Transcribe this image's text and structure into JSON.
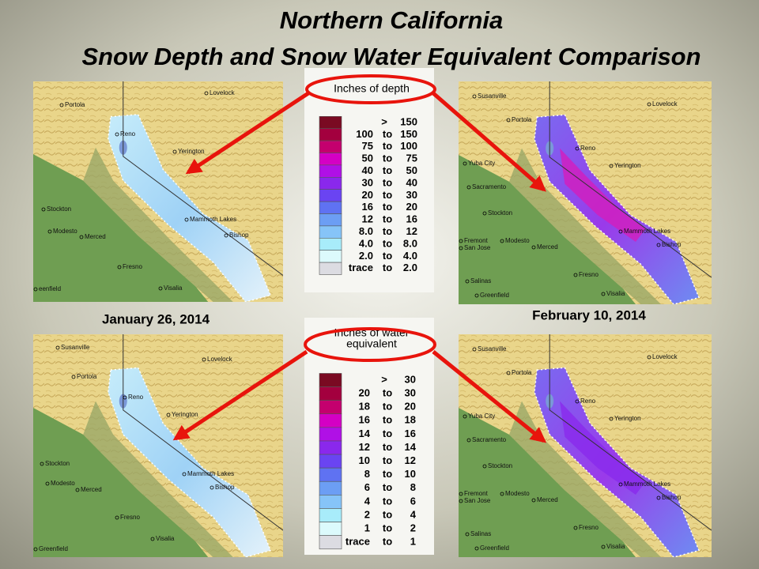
{
  "header": {
    "title": "Northern California",
    "subtitle": "Snow Depth and Snow Water Equivalent Comparison"
  },
  "dates": [
    "January 26, 2014",
    "February 10, 2014"
  ],
  "legends": [
    {
      "title_lines": [
        "Inches of depth"
      ],
      "rows": [
        {
          "cells": [
            ">",
            "150"
          ],
          "color": "#7a0a22"
        },
        {
          "cells": [
            "100",
            "to",
            "150"
          ],
          "color": "#a3003e"
        },
        {
          "cells": [
            "75",
            "to",
            "100"
          ],
          "color": "#c4006e"
        },
        {
          "cells": [
            "50",
            "to",
            "75"
          ],
          "color": "#d400c4"
        },
        {
          "cells": [
            "40",
            "to",
            "50"
          ],
          "color": "#b010e6"
        },
        {
          "cells": [
            "30",
            "to",
            "40"
          ],
          "color": "#8a28ec"
        },
        {
          "cells": [
            "20",
            "to",
            "30"
          ],
          "color": "#6a44f2"
        },
        {
          "cells": [
            "16",
            "to",
            "20"
          ],
          "color": "#5f72f2"
        },
        {
          "cells": [
            "12",
            "to",
            "16"
          ],
          "color": "#6c9ef4"
        },
        {
          "cells": [
            "8.0",
            "to",
            "12"
          ],
          "color": "#86c4f8"
        },
        {
          "cells": [
            "4.0",
            "to",
            "8.0"
          ],
          "color": "#a8ecfa"
        },
        {
          "cells": [
            "2.0",
            "to",
            "4.0"
          ],
          "color": "#dcfafc"
        },
        {
          "cells": [
            "trace",
            "to",
            "2.0"
          ],
          "color": "#dcdce2"
        }
      ]
    },
    {
      "title_lines": [
        "Inches of water",
        "equivalent"
      ],
      "rows": [
        {
          "cells": [
            ">",
            "30"
          ],
          "color": "#7a0a22"
        },
        {
          "cells": [
            "20",
            "to",
            "30"
          ],
          "color": "#a3003e"
        },
        {
          "cells": [
            "18",
            "to",
            "20"
          ],
          "color": "#c4006e"
        },
        {
          "cells": [
            "16",
            "to",
            "18"
          ],
          "color": "#d400c4"
        },
        {
          "cells": [
            "14",
            "to",
            "16"
          ],
          "color": "#b010e6"
        },
        {
          "cells": [
            "12",
            "to",
            "14"
          ],
          "color": "#8a28ec"
        },
        {
          "cells": [
            "10",
            "to",
            "12"
          ],
          "color": "#6a44f2"
        },
        {
          "cells": [
            "8",
            "to",
            "10"
          ],
          "color": "#5f72f2"
        },
        {
          "cells": [
            "6",
            "to",
            "8"
          ],
          "color": "#6c9ef4"
        },
        {
          "cells": [
            "4",
            "to",
            "6"
          ],
          "color": "#86c4f8"
        },
        {
          "cells": [
            "2",
            "to",
            "4"
          ],
          "color": "#a8ecfa"
        },
        {
          "cells": [
            "1",
            "to",
            "2"
          ],
          "color": "#dcfafc"
        },
        {
          "cells": [
            "trace",
            "to",
            "1"
          ],
          "color": "#dcdce2"
        }
      ]
    }
  ],
  "maps": [
    {
      "labels": [
        "Lovelock",
        "Portola",
        "Reno",
        "Yerington",
        "Stockton",
        "Mammoth Lakes",
        "Modesto",
        "Merced",
        "Bishop",
        "Fresno",
        "Visalia",
        "eenfield"
      ]
    },
    {
      "labels": [
        "Susanville",
        "Lovelock",
        "Portola",
        "Reno",
        "Yuba City",
        "Yerington",
        "Sacramento",
        "Stockton",
        "Fremont",
        "San Jose",
        "Modesto",
        "Mammoth Lakes",
        "Merced",
        "Bishop",
        "Fresno",
        "Salinas",
        "Greenfield",
        "Visalia"
      ]
    },
    {
      "labels": [
        "Susanville",
        "Lovelock",
        "Portola",
        "Reno",
        "Yerington",
        "Stockton",
        "Mammoth Lakes",
        "Modesto",
        "Merced",
        "Bishop",
        "Fresno",
        "Visalia",
        "Greenfield"
      ]
    },
    {
      "labels": [
        "Susanville",
        "Lovelock",
        "Portola",
        "Reno",
        "Yuba City",
        "Yerington",
        "Sacramento",
        "Stockton",
        "Fremont",
        "San Jose",
        "Modesto",
        "Mammoth Lakes",
        "Merced",
        "Bishop",
        "Fresno",
        "Salinas",
        "Greenfield",
        "Visalia"
      ]
    }
  ]
}
